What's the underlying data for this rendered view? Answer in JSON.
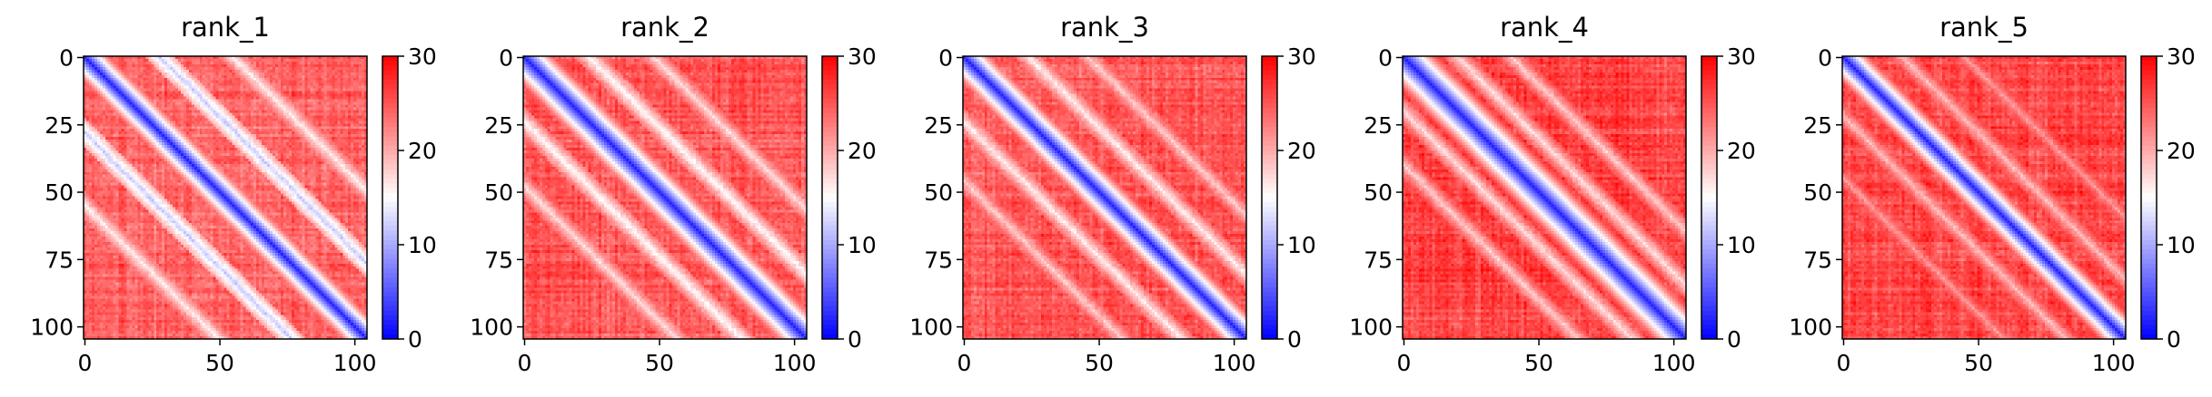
{
  "chart_data": [
    {
      "type": "heatmap",
      "title": "rank_1",
      "size": 105,
      "xticks": [
        0,
        50,
        100
      ],
      "yticks": [
        0,
        25,
        50,
        75,
        100
      ],
      "colorbar": {
        "min": 0,
        "max": 30,
        "ticks": [
          0,
          10,
          20,
          30
        ]
      },
      "colormap": [
        "#0000ff",
        "#ffffff",
        "#ff0000"
      ],
      "pattern": {
        "diagonal_width": 3.0,
        "bands": [
          {
            "offset": 28,
            "value": 12
          },
          {
            "offset": 55,
            "value": 16
          }
        ],
        "background": 24,
        "seed": 1
      }
    },
    {
      "type": "heatmap",
      "title": "rank_2",
      "size": 105,
      "xticks": [
        0,
        50,
        100
      ],
      "yticks": [
        0,
        25,
        50,
        75,
        100
      ],
      "colorbar": {
        "min": 0,
        "max": 30,
        "ticks": [
          0,
          10,
          20,
          30
        ]
      },
      "colormap": [
        "#0000ff",
        "#ffffff",
        "#ff0000"
      ],
      "pattern": {
        "diagonal_width": 3.5,
        "bands": [
          {
            "offset": 24,
            "value": 15
          },
          {
            "offset": 48,
            "value": 17
          }
        ],
        "background": 25,
        "seed": 2
      }
    },
    {
      "type": "heatmap",
      "title": "rank_3",
      "size": 105,
      "xticks": [
        0,
        50,
        100
      ],
      "yticks": [
        0,
        25,
        50,
        75,
        100
      ],
      "colorbar": {
        "min": 0,
        "max": 30,
        "ticks": [
          0,
          10,
          20,
          30
        ]
      },
      "colormap": [
        "#0000ff",
        "#ffffff",
        "#ff0000"
      ],
      "pattern": {
        "diagonal_width": 3.2,
        "bands": [
          {
            "offset": 24,
            "value": 16
          },
          {
            "offset": 46,
            "value": 18
          }
        ],
        "background": 25,
        "seed": 3
      }
    },
    {
      "type": "heatmap",
      "title": "rank_4",
      "size": 105,
      "xticks": [
        0,
        50,
        100
      ],
      "yticks": [
        0,
        25,
        50,
        75,
        100
      ],
      "colorbar": {
        "min": 0,
        "max": 30,
        "ticks": [
          0,
          10,
          20,
          30
        ]
      },
      "colormap": [
        "#0000ff",
        "#ffffff",
        "#ff0000"
      ],
      "pattern": {
        "diagonal_width": 3.8,
        "bands": [
          {
            "offset": 20,
            "value": 17
          },
          {
            "offset": 40,
            "value": 18
          }
        ],
        "background": 26,
        "seed": 4
      }
    },
    {
      "type": "heatmap",
      "title": "rank_5",
      "size": 105,
      "xticks": [
        0,
        50,
        100
      ],
      "yticks": [
        0,
        25,
        50,
        75,
        100
      ],
      "colorbar": {
        "min": 0,
        "max": 30,
        "ticks": [
          0,
          10,
          20,
          30
        ]
      },
      "colormap": [
        "#0000ff",
        "#ffffff",
        "#ff0000"
      ],
      "pattern": {
        "diagonal_width": 3.0,
        "bands": [
          {
            "offset": 22,
            "value": 19
          },
          {
            "offset": 45,
            "value": 21
          }
        ],
        "background": 26,
        "seed": 5
      }
    }
  ]
}
